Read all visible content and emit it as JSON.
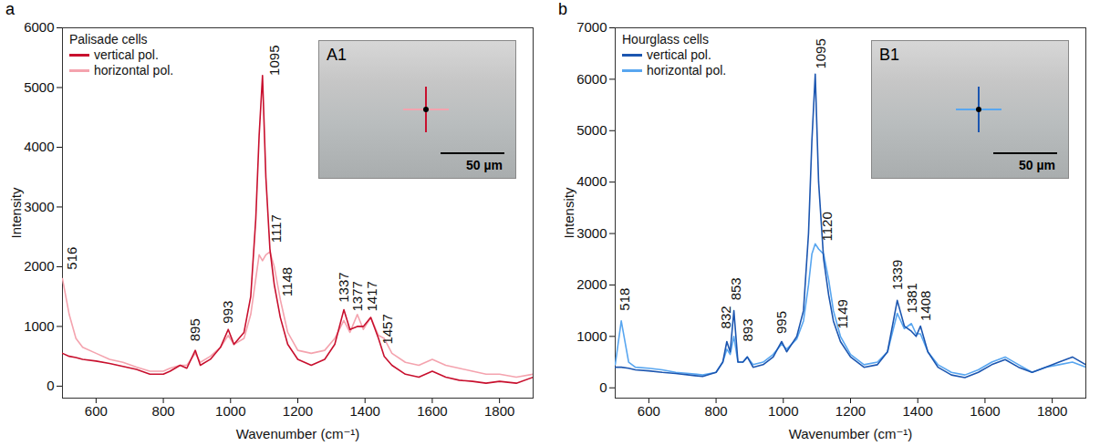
{
  "chart_data": [
    {
      "type": "line",
      "panel_label": "a",
      "legend_title": "Palisade cells",
      "legend": "top-left",
      "x_label": "Wavenumber (cm⁻¹)",
      "y_label": "Intensity",
      "xlim": [
        500,
        1900
      ],
      "xticks": [
        600,
        800,
        1000,
        1200,
        1400,
        1600,
        1800
      ],
      "ylim": [
        -200,
        6000
      ],
      "yticks": [
        0,
        1000,
        2000,
        3000,
        4000,
        5000,
        6000
      ],
      "x": [
        500,
        520,
        540,
        560,
        600,
        640,
        680,
        720,
        760,
        800,
        820,
        850,
        870,
        895,
        910,
        940,
        970,
        993,
        1010,
        1040,
        1060,
        1075,
        1085,
        1095,
        1105,
        1117,
        1130,
        1148,
        1170,
        1200,
        1240,
        1280,
        1310,
        1337,
        1355,
        1377,
        1395,
        1417,
        1440,
        1457,
        1480,
        1520,
        1560,
        1600,
        1640,
        1680,
        1720,
        1760,
        1800,
        1850,
        1900
      ],
      "series": [
        {
          "name": "horizontal pol.",
          "color": "#f4a3ae",
          "values": [
            1800,
            1200,
            800,
            650,
            550,
            450,
            400,
            320,
            250,
            250,
            300,
            350,
            350,
            550,
            400,
            500,
            650,
            850,
            700,
            800,
            1200,
            1800,
            2200,
            2100,
            2200,
            2250,
            2000,
            1450,
            900,
            600,
            550,
            600,
            800,
            1100,
            900,
            1200,
            950,
            1150,
            850,
            800,
            550,
            400,
            350,
            450,
            350,
            300,
            250,
            200,
            200,
            150,
            200
          ]
        },
        {
          "name": "vertical pol.",
          "color": "#c8102e",
          "values": [
            550,
            500,
            480,
            450,
            420,
            380,
            330,
            280,
            200,
            200,
            250,
            350,
            300,
            600,
            350,
            450,
            650,
            950,
            700,
            900,
            1500,
            2800,
            4200,
            5200,
            3500,
            2300,
            1700,
            1150,
            700,
            450,
            350,
            450,
            700,
            1280,
            950,
            1000,
            1000,
            1150,
            800,
            500,
            350,
            200,
            150,
            250,
            150,
            100,
            80,
            50,
            80,
            50,
            150
          ]
        }
      ],
      "annotations": [
        {
          "x": 530,
          "y": 1950,
          "text": "516"
        },
        {
          "x": 895,
          "y": 750,
          "text": "895"
        },
        {
          "x": 993,
          "y": 1050,
          "text": "993"
        },
        {
          "x": 1130,
          "y": 5200,
          "text": "1095"
        },
        {
          "x": 1138,
          "y": 2400,
          "text": "1117"
        },
        {
          "x": 1168,
          "y": 1500,
          "text": "1148"
        },
        {
          "x": 1337,
          "y": 1400,
          "text": "1337"
        },
        {
          "x": 1379,
          "y": 1250,
          "text": "1377"
        },
        {
          "x": 1421,
          "y": 1250,
          "text": "1417"
        },
        {
          "x": 1468,
          "y": 700,
          "text": "1457"
        }
      ],
      "inset": {
        "label": "A1",
        "scale_bar": "50 µm"
      }
    },
    {
      "type": "line",
      "panel_label": "b",
      "legend_title": "Hourglass cells",
      "legend": "top-left",
      "x_label": "Wavenumber (cm⁻¹)",
      "y_label": "Intensity",
      "xlim": [
        500,
        1900
      ],
      "xticks": [
        600,
        800,
        1000,
        1200,
        1400,
        1600,
        1800
      ],
      "ylim": [
        -200,
        7000
      ],
      "yticks": [
        0,
        1000,
        2000,
        3000,
        4000,
        5000,
        6000,
        7000
      ],
      "x": [
        500,
        518,
        540,
        560,
        600,
        640,
        680,
        720,
        760,
        800,
        820,
        832,
        842,
        853,
        865,
        880,
        893,
        910,
        940,
        970,
        995,
        1010,
        1040,
        1060,
        1075,
        1085,
        1095,
        1105,
        1120,
        1135,
        1149,
        1170,
        1200,
        1240,
        1280,
        1310,
        1339,
        1360,
        1381,
        1395,
        1408,
        1430,
        1460,
        1500,
        1540,
        1580,
        1620,
        1660,
        1700,
        1740,
        1780,
        1820,
        1860,
        1900
      ],
      "series": [
        {
          "name": "horizontal pol.",
          "color": "#58a6f0",
          "values": [
            450,
            1300,
            500,
            400,
            380,
            350,
            300,
            280,
            250,
            300,
            500,
            750,
            650,
            1000,
            500,
            500,
            600,
            450,
            500,
            650,
            850,
            750,
            950,
            1300,
            2000,
            2600,
            2800,
            2700,
            2600,
            2100,
            1500,
            1000,
            650,
            450,
            500,
            700,
            1450,
            1150,
            1250,
            1050,
            1050,
            700,
            450,
            300,
            250,
            350,
            500,
            600,
            450,
            300,
            400,
            450,
            500,
            400
          ]
        },
        {
          "name": "vertical pol.",
          "color": "#1c56b0",
          "values": [
            400,
            400,
            380,
            350,
            330,
            300,
            280,
            250,
            220,
            300,
            500,
            900,
            700,
            1500,
            500,
            500,
            600,
            400,
            450,
            600,
            900,
            700,
            1000,
            1500,
            3000,
            4800,
            6100,
            4000,
            2500,
            1800,
            1300,
            900,
            600,
            400,
            450,
            700,
            1700,
            1200,
            1100,
            1000,
            1200,
            700,
            400,
            250,
            200,
            300,
            450,
            550,
            400,
            300,
            400,
            500,
            600,
            450
          ]
        }
      ],
      "annotations": [
        {
          "x": 530,
          "y": 1500,
          "text": "518"
        },
        {
          "x": 830,
          "y": 1150,
          "text": "832"
        },
        {
          "x": 860,
          "y": 1700,
          "text": "853"
        },
        {
          "x": 895,
          "y": 900,
          "text": "893"
        },
        {
          "x": 995,
          "y": 1050,
          "text": "995"
        },
        {
          "x": 1112,
          "y": 6200,
          "text": "1095"
        },
        {
          "x": 1132,
          "y": 2850,
          "text": "1120"
        },
        {
          "x": 1178,
          "y": 1150,
          "text": "1149"
        },
        {
          "x": 1339,
          "y": 1900,
          "text": "1339"
        },
        {
          "x": 1383,
          "y": 1450,
          "text": "1381"
        },
        {
          "x": 1424,
          "y": 1300,
          "text": "1408"
        }
      ],
      "inset": {
        "label": "B1",
        "scale_bar": "50 µm"
      }
    }
  ]
}
